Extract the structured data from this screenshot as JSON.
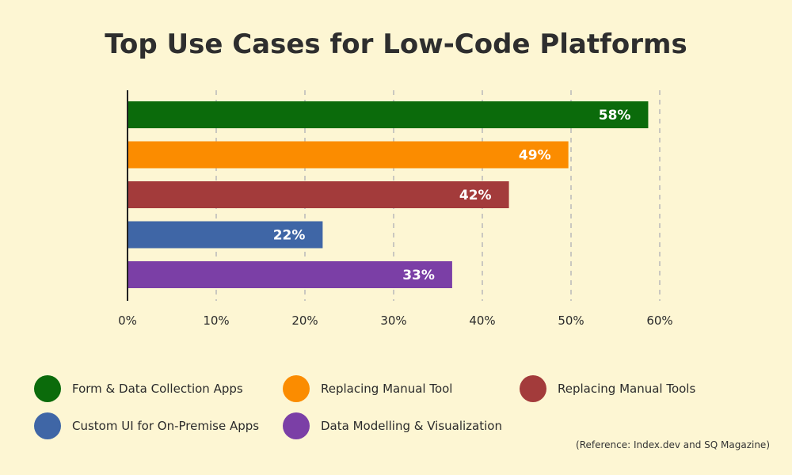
{
  "chart_data": {
    "type": "bar",
    "orientation": "horizontal",
    "title": "Top Use Cases for Low-Code Platforms",
    "categories": [
      "Form & Data Collection Apps",
      "Replacing Manual Tool",
      "Replacing Manual Tools",
      "Custom UI for On-Premise Apps",
      "Data Modelling & Visualization"
    ],
    "values": [
      58,
      49,
      42,
      22,
      33
    ],
    "data_labels": [
      "58%",
      "49%",
      "42%",
      "22%",
      "33%"
    ],
    "colors": [
      "#0b6b0b",
      "#fb8c00",
      "#a33b3b",
      "#3f66a6",
      "#7b3fa6"
    ],
    "xlim": [
      0,
      60
    ],
    "xticks": [
      0,
      10,
      20,
      30,
      40,
      50,
      60
    ],
    "xtick_labels": [
      "0%",
      "10%",
      "20%",
      "30%",
      "40%",
      "50%",
      "60%"
    ],
    "grid": "vertical dashed",
    "legend_placement": "bottom",
    "xlabel": "",
    "ylabel": ""
  },
  "reference": "(Reference: Index.dev and SQ Magazine)"
}
